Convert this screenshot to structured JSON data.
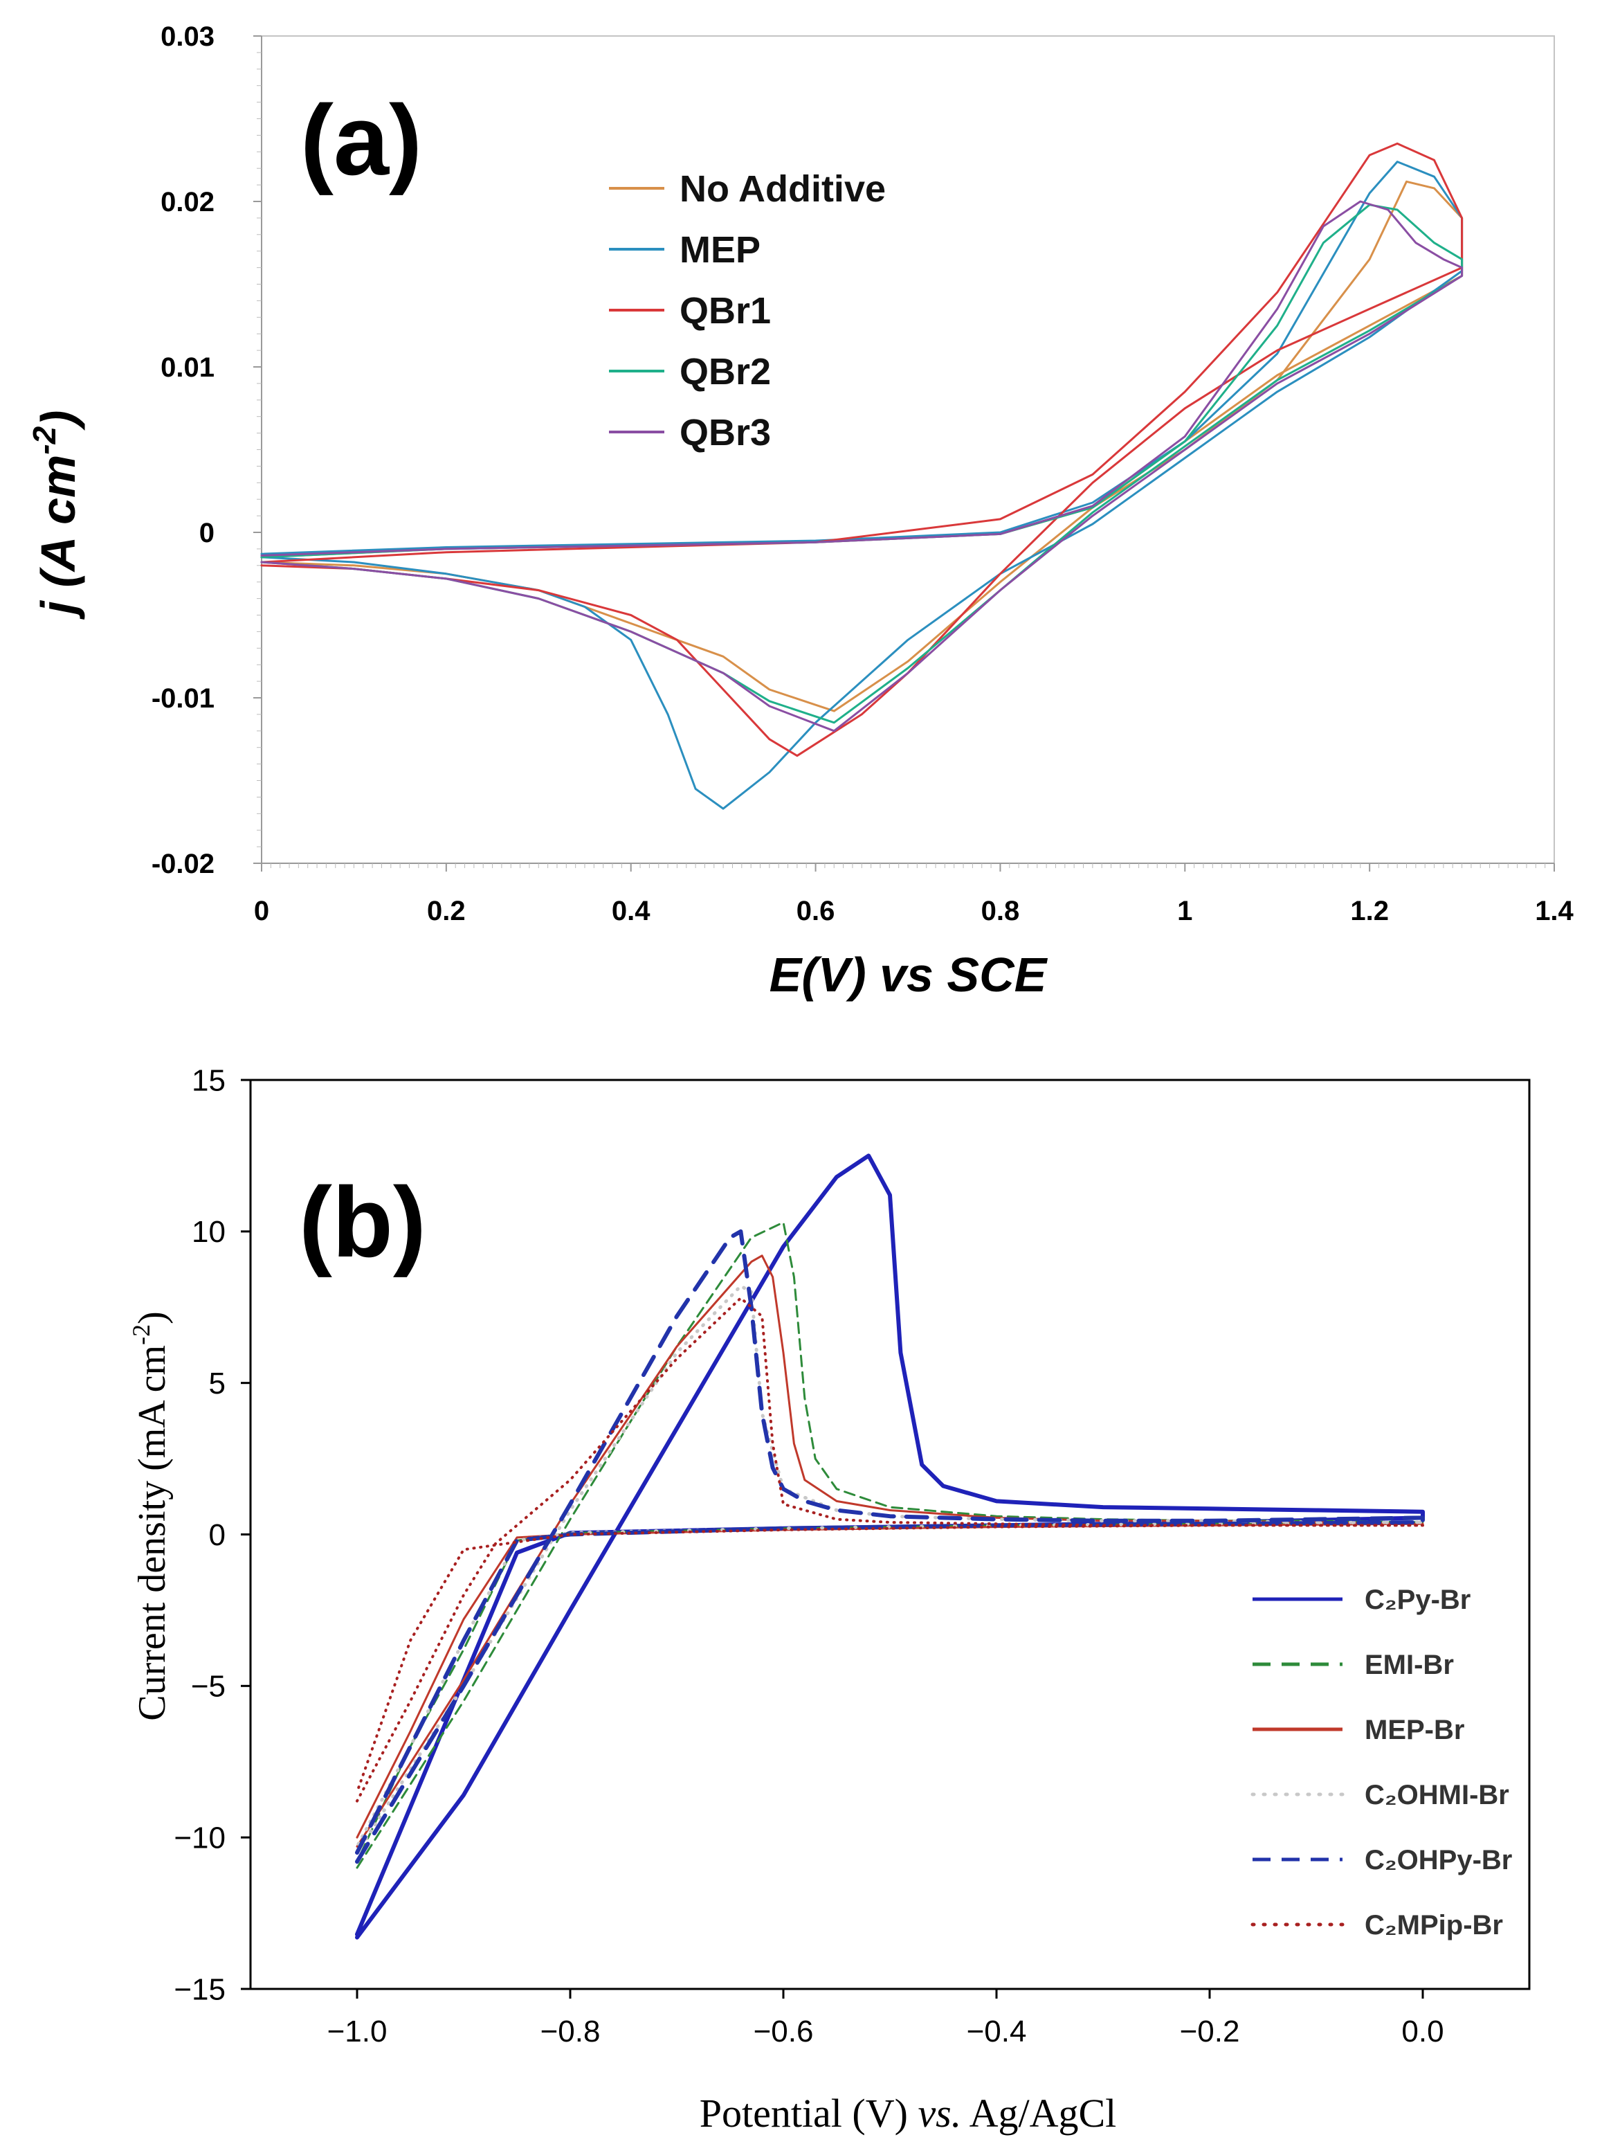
{
  "chart_data": [
    {
      "type": "line",
      "panel_label": "(a)",
      "xlabel": "E(V) vs SCE",
      "ylabel_main": "j (A cm",
      "ylabel_sup": "-2",
      "ylabel_close": ")",
      "xlim": [
        0,
        1.4
      ],
      "ylim": [
        -0.02,
        0.03
      ],
      "x_ticks": [
        0,
        0.2,
        0.4,
        0.6,
        0.8,
        1,
        1.2,
        1.4
      ],
      "x_tick_labels": [
        "0",
        "0.2",
        "0.4",
        "0.6",
        "0.8",
        "1",
        "1.2",
        "1.4"
      ],
      "y_ticks": [
        -0.02,
        -0.01,
        0,
        0.01,
        0.02,
        0.03
      ],
      "y_tick_labels": [
        "-0.02",
        "-0.01",
        "0",
        "0.01",
        "0.02",
        "0.03"
      ],
      "grid": false,
      "legend_position": "top-center",
      "series": [
        {
          "name": "No Additive",
          "color": "#d8904a",
          "style": "solid",
          "width": 3,
          "x": [
            0,
            0.2,
            0.4,
            0.6,
            0.8,
            0.9,
            1.0,
            1.1,
            1.2,
            1.24,
            1.27,
            1.3,
            1.3,
            1.2,
            1.1,
            1.0,
            0.9,
            0.8,
            0.7,
            0.62,
            0.55,
            0.5,
            0.4,
            0.3,
            0.2,
            0.1,
            0
          ],
          "y": [
            -0.0015,
            -0.001,
            -0.0008,
            -0.0006,
            -0.0001,
            0.0015,
            0.005,
            0.0092,
            0.0165,
            0.0212,
            0.0208,
            0.019,
            0.0155,
            0.0125,
            0.0095,
            0.0055,
            0.0015,
            -0.003,
            -0.0078,
            -0.0108,
            -0.0095,
            -0.0075,
            -0.0055,
            -0.0035,
            -0.0025,
            -0.002,
            -0.0018
          ]
        },
        {
          "name": "MEP",
          "color": "#2b8fbf",
          "style": "solid",
          "width": 3,
          "x": [
            0,
            0.2,
            0.4,
            0.6,
            0.8,
            0.9,
            1.0,
            1.1,
            1.2,
            1.23,
            1.27,
            1.3,
            1.3,
            1.2,
            1.1,
            1.0,
            0.9,
            0.8,
            0.7,
            0.6,
            0.55,
            0.5,
            0.47,
            0.44,
            0.4,
            0.35,
            0.3,
            0.2,
            0.1,
            0
          ],
          "y": [
            -0.0013,
            -0.0009,
            -0.0007,
            -0.0005,
            0.0,
            0.0018,
            0.0055,
            0.0108,
            0.0205,
            0.0224,
            0.0215,
            0.019,
            0.0158,
            0.0118,
            0.0085,
            0.0045,
            0.0005,
            -0.0025,
            -0.0065,
            -0.0115,
            -0.0145,
            -0.0167,
            -0.0155,
            -0.011,
            -0.0065,
            -0.0045,
            -0.0035,
            -0.0025,
            -0.0018,
            -0.0015
          ]
        },
        {
          "name": "QBr1",
          "color": "#d9383a",
          "style": "solid",
          "width": 3,
          "x": [
            0,
            0.2,
            0.4,
            0.6,
            0.8,
            0.9,
            1.0,
            1.1,
            1.2,
            1.23,
            1.27,
            1.3,
            1.3,
            1.2,
            1.1,
            1.0,
            0.9,
            0.8,
            0.7,
            0.65,
            0.58,
            0.55,
            0.5,
            0.45,
            0.4,
            0.3,
            0.2,
            0.1,
            0
          ],
          "y": [
            -0.0018,
            -0.0012,
            -0.0009,
            -0.0006,
            0.0008,
            0.0035,
            0.0085,
            0.0145,
            0.0228,
            0.0235,
            0.0225,
            0.019,
            0.016,
            0.0135,
            0.011,
            0.0075,
            0.003,
            -0.0025,
            -0.0085,
            -0.011,
            -0.0135,
            -0.0125,
            -0.0095,
            -0.0065,
            -0.005,
            -0.0035,
            -0.0028,
            -0.0022,
            -0.002
          ]
        },
        {
          "name": "QBr2",
          "color": "#1fb08a",
          "style": "solid",
          "width": 3,
          "x": [
            0,
            0.2,
            0.4,
            0.6,
            0.8,
            0.9,
            1.0,
            1.1,
            1.15,
            1.2,
            1.23,
            1.27,
            1.3,
            1.3,
            1.2,
            1.1,
            1.0,
            0.9,
            0.8,
            0.7,
            0.62,
            0.55,
            0.5,
            0.4,
            0.3,
            0.2,
            0.1,
            0
          ],
          "y": [
            -0.0015,
            -0.001,
            -0.0008,
            -0.0006,
            -0.0001,
            0.0015,
            0.0055,
            0.0125,
            0.0175,
            0.0198,
            0.0195,
            0.0175,
            0.0165,
            0.0155,
            0.0122,
            0.0092,
            0.0052,
            0.0012,
            -0.0035,
            -0.0082,
            -0.0115,
            -0.0102,
            -0.0085,
            -0.006,
            -0.004,
            -0.0028,
            -0.0022,
            -0.0018
          ]
        },
        {
          "name": "QBr3",
          "color": "#8a4ea3",
          "style": "solid",
          "width": 3,
          "x": [
            0,
            0.2,
            0.4,
            0.6,
            0.8,
            0.9,
            1.0,
            1.1,
            1.15,
            1.19,
            1.22,
            1.25,
            1.28,
            1.3,
            1.3,
            1.2,
            1.1,
            1.0,
            0.9,
            0.8,
            0.7,
            0.62,
            0.55,
            0.5,
            0.4,
            0.3,
            0.2,
            0.1,
            0
          ],
          "y": [
            -0.0014,
            -0.001,
            -0.0008,
            -0.0006,
            -0.0001,
            0.0016,
            0.0058,
            0.0135,
            0.0185,
            0.02,
            0.0195,
            0.0175,
            0.0165,
            0.016,
            0.0155,
            0.012,
            0.009,
            0.005,
            0.001,
            -0.0035,
            -0.0085,
            -0.012,
            -0.0105,
            -0.0085,
            -0.006,
            -0.004,
            -0.0028,
            -0.0022,
            -0.0018
          ]
        }
      ]
    },
    {
      "type": "line",
      "panel_label": "(b)",
      "xlabel_pre": "Potential (V) ",
      "xlabel_italic": "vs.",
      "xlabel_post": " Ag/AgCl",
      "ylabel_main": "Current density (mA cm",
      "ylabel_sup": "-2",
      "ylabel_close": ")",
      "xlim": [
        -1.1,
        0.1
      ],
      "ylim": [
        -15,
        15
      ],
      "x_ticks": [
        -1.0,
        -0.8,
        -0.6,
        -0.4,
        -0.2,
        0.0
      ],
      "x_tick_labels": [
        "−1.0",
        "−0.8",
        "−0.6",
        "−0.4",
        "−0.2",
        "0.0"
      ],
      "y_ticks": [
        -15,
        -10,
        -5,
        0,
        5,
        10,
        15
      ],
      "y_tick_labels": [
        "−15",
        "−10",
        "−5",
        "0",
        "5",
        "10",
        "15"
      ],
      "grid": false,
      "legend_position": "bottom-right",
      "series": [
        {
          "name": "C₂Py-Br",
          "color": "#1f22b8",
          "style": "solid",
          "width": 6,
          "x": [
            -1.0,
            -0.9,
            -0.8,
            -0.7,
            -0.6,
            -0.55,
            -0.52,
            -0.5,
            -0.49,
            -0.47,
            -0.45,
            -0.4,
            -0.3,
            -0.2,
            -0.1,
            0.0,
            0.0,
            -0.2,
            -0.4,
            -0.6,
            -0.8,
            -0.85,
            -0.9,
            -0.95,
            -1.0
          ],
          "y": [
            -13.3,
            -8.6,
            -2.5,
            3.5,
            9.5,
            11.8,
            12.5,
            11.2,
            6.0,
            2.3,
            1.6,
            1.1,
            0.9,
            0.85,
            0.8,
            0.75,
            0.55,
            0.4,
            0.3,
            0.2,
            0.05,
            -0.6,
            -4.8,
            -9.0,
            -13.2
          ]
        },
        {
          "name": "EMI-Br",
          "color": "#2e8b3a",
          "style": "dashed",
          "width": 3,
          "x": [
            -1.0,
            -0.9,
            -0.8,
            -0.7,
            -0.63,
            -0.6,
            -0.59,
            -0.58,
            -0.57,
            -0.55,
            -0.5,
            -0.4,
            -0.3,
            -0.2,
            -0.1,
            0.0,
            0.0,
            -0.2,
            -0.4,
            -0.6,
            -0.8,
            -0.85,
            -0.9,
            -0.95,
            -1.0
          ],
          "y": [
            -11.0,
            -5.5,
            0.5,
            6.2,
            9.8,
            10.3,
            8.5,
            4.5,
            2.5,
            1.5,
            0.9,
            0.6,
            0.5,
            0.45,
            0.45,
            0.4,
            0.4,
            0.35,
            0.3,
            0.2,
            0.05,
            -0.2,
            -3.8,
            -7.0,
            -10.8
          ]
        },
        {
          "name": "MEP-Br",
          "color": "#c0392b",
          "style": "solid",
          "width": 3,
          "x": [
            -1.0,
            -0.9,
            -0.8,
            -0.7,
            -0.63,
            -0.62,
            -0.61,
            -0.6,
            -0.59,
            -0.58,
            -0.55,
            -0.5,
            -0.4,
            -0.3,
            -0.2,
            -0.1,
            0.0,
            0.0,
            -0.2,
            -0.4,
            -0.6,
            -0.8,
            -0.85,
            -0.9,
            -0.95,
            -1.0
          ],
          "y": [
            -10.3,
            -4.8,
            1.0,
            6.2,
            9.0,
            9.2,
            8.5,
            6.0,
            3.0,
            1.8,
            1.1,
            0.8,
            0.55,
            0.45,
            0.45,
            0.4,
            0.35,
            0.35,
            0.3,
            0.25,
            0.15,
            0.0,
            -0.1,
            -2.8,
            -6.5,
            -10.0
          ]
        },
        {
          "name": "C₂OHMI-Br",
          "color": "#c8c8c8",
          "style": "dotted",
          "width": 5,
          "x": [
            -1.0,
            -0.9,
            -0.8,
            -0.7,
            -0.64,
            -0.63,
            -0.62,
            -0.6,
            -0.55,
            -0.5,
            -0.4,
            -0.3,
            -0.2,
            -0.1,
            0.0,
            0.0,
            -0.2,
            -0.4,
            -0.6,
            -0.8,
            -0.85,
            -0.9,
            -0.95,
            -1.0
          ],
          "y": [
            -10.5,
            -5.0,
            0.8,
            6.0,
            8.2,
            8.0,
            4.0,
            1.5,
            0.8,
            0.6,
            0.5,
            0.45,
            0.45,
            0.4,
            0.4,
            0.4,
            0.35,
            0.3,
            0.2,
            0.05,
            -0.2,
            -3.5,
            -7.0,
            -10.3
          ]
        },
        {
          "name": "C₂OHPy-Br",
          "color": "#2233aa",
          "style": "dashed",
          "width": 6,
          "x": [
            -1.0,
            -0.9,
            -0.8,
            -0.7,
            -0.65,
            -0.64,
            -0.63,
            -0.62,
            -0.61,
            -0.6,
            -0.58,
            -0.55,
            -0.5,
            -0.4,
            -0.3,
            -0.2,
            -0.1,
            0.0,
            0.0,
            -0.2,
            -0.4,
            -0.6,
            -0.8,
            -0.85,
            -0.9,
            -0.95,
            -1.0
          ],
          "y": [
            -10.8,
            -5.0,
            1.0,
            7.2,
            9.8,
            10.0,
            7.5,
            4.0,
            2.2,
            1.5,
            1.1,
            0.8,
            0.6,
            0.5,
            0.45,
            0.45,
            0.5,
            0.55,
            0.4,
            0.35,
            0.3,
            0.2,
            0.0,
            -0.2,
            -3.5,
            -7.0,
            -10.5
          ]
        },
        {
          "name": "C₂MPip-Br",
          "color": "#a82020",
          "style": "dotted",
          "width": 4,
          "x": [
            -1.0,
            -0.95,
            -0.9,
            -0.87,
            -0.8,
            -0.7,
            -0.64,
            -0.62,
            -0.61,
            -0.6,
            -0.55,
            -0.5,
            -0.4,
            -0.3,
            -0.2,
            -0.1,
            0.0,
            0.0,
            -0.2,
            -0.4,
            -0.6,
            -0.8,
            -0.9,
            -0.95,
            -1.0
          ],
          "y": [
            -8.8,
            -5.5,
            -2.0,
            -0.3,
            1.8,
            5.8,
            7.8,
            7.2,
            3.0,
            1.0,
            0.5,
            0.4,
            0.35,
            0.3,
            0.3,
            0.3,
            0.3,
            0.3,
            0.3,
            0.25,
            0.15,
            0.0,
            -0.5,
            -3.5,
            -8.5
          ]
        }
      ]
    }
  ]
}
